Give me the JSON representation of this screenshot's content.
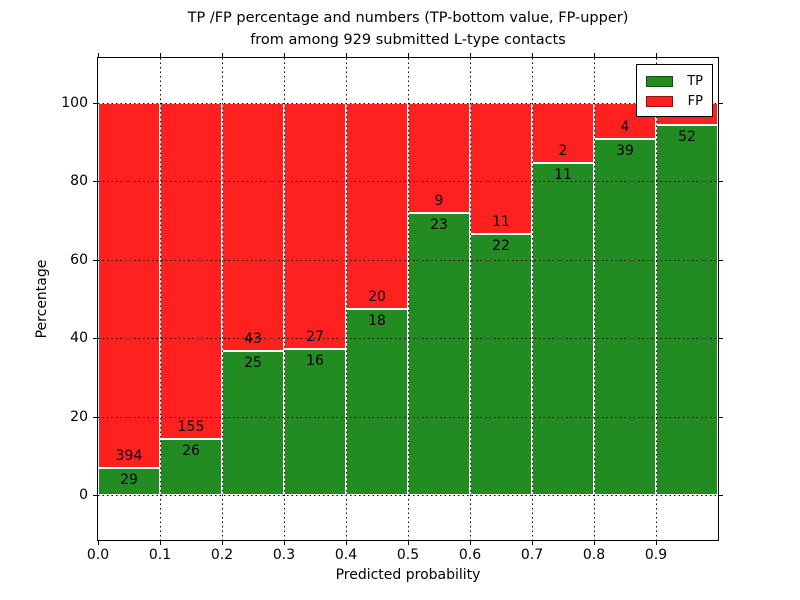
{
  "chart_data": {
    "type": "bar",
    "stacked": true,
    "title": "TP /FP percentage and numbers (TP-bottom value, FP-upper) from among 929 submitted L-type contacts",
    "title_lines": [
      "TP /FP percentage and numbers (TP-bottom value, FP-upper)",
      "from among 929 submitted L-type contacts"
    ],
    "xlabel": "Predicted probability",
    "ylabel": "Percentage",
    "x_tick_labels": [
      "0.0",
      "0.1",
      "0.2",
      "0.3",
      "0.4",
      "0.5",
      "0.6",
      "0.7",
      "0.8",
      "0.9"
    ],
    "y_tick_values": [
      0,
      20,
      40,
      60,
      80,
      100
    ],
    "xlim": [
      0.0,
      1.0
    ],
    "ylim": [
      -11.5,
      111.5
    ],
    "bar_bin_width": 0.1,
    "grid": true,
    "grid_style": "dotted",
    "series": [
      {
        "name": "TP",
        "color": "#228b22",
        "counts": [
          29,
          26,
          25,
          16,
          18,
          23,
          22,
          11,
          39,
          52
        ]
      },
      {
        "name": "FP",
        "color": "#ff2020",
        "counts": [
          394,
          155,
          43,
          27,
          20,
          9,
          11,
          2,
          4,
          null
        ]
      }
    ],
    "tp_percent": [
      6.9,
      14.4,
      36.8,
      37.2,
      47.4,
      71.9,
      66.7,
      84.6,
      90.7,
      94.5
    ],
    "legend": {
      "position": "upper right",
      "entries": [
        {
          "label": "TP",
          "color": "#228b22"
        },
        {
          "label": "FP",
          "color": "#ff2020"
        }
      ]
    },
    "colors": {
      "tp": "#228b22",
      "fp": "#ff2020",
      "background": "#ffffff",
      "frame": "#000000",
      "grid": "#000000",
      "bar_edge": "#ffffff"
    }
  }
}
